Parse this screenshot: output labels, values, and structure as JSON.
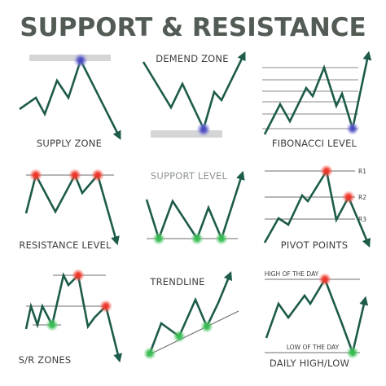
{
  "title": "SUPPORT & RESISTANCE",
  "panels": {
    "supply_zone": {
      "label": "SUPPLY ZONE"
    },
    "demand_zone": {
      "label": "DEMEND ZONE"
    },
    "fibonacci_level": {
      "label": "FIBONACCI LEVEL"
    },
    "resistance_level": {
      "label": "RESISTANCE LEVEL"
    },
    "support_level": {
      "label": "SUPPORT LEVEL"
    },
    "pivot_points": {
      "label": "PIVOT POINTS",
      "levels": [
        "R1",
        "R2",
        "R3"
      ]
    },
    "sr_zones": {
      "label": "S/R ZONES"
    },
    "trendline": {
      "label": "TRENDLINE"
    },
    "daily_high_low": {
      "label": "DAILY HIGH/LOW",
      "high_label": "HIGH OF THE DAY",
      "low_label": "LOW OF THE DAY"
    }
  },
  "colors": {
    "title": "#535b55",
    "line": "#1d5b4a",
    "red_marker": "#e8312a",
    "green_marker": "#2fb34a",
    "blue_marker": "#5a5ac8",
    "zone": "#d4d6d5"
  }
}
